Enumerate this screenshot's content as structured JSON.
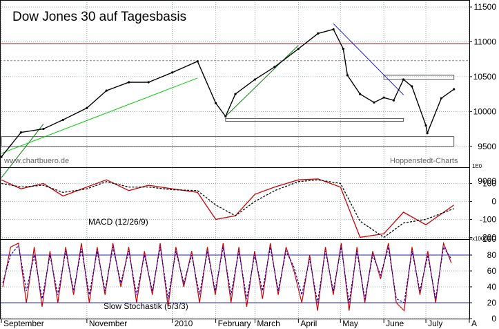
{
  "chart_data": [
    {
      "type": "line",
      "panel": "price",
      "title": "Dow Jones 30 auf Tagesbasis",
      "watermark_left": "www.chartbuero.de",
      "watermark_right": "Hoppenstedt-Charts",
      "ylim": [
        9200,
        11600
      ],
      "yticks": [
        {
          "value": 11500,
          "label": "11500"
        },
        {
          "value": 11000,
          "label": "11000"
        },
        {
          "value": 10500,
          "label": "10500"
        },
        {
          "value": 10000,
          "label": "10000"
        },
        {
          "value": 9500,
          "label": "9500"
        },
        {
          "value": 9000,
          "label": "9000"
        }
      ],
      "x_dates": [
        "2009-09-01",
        "2009-09-15",
        "2009-10-01",
        "2009-10-15",
        "2009-11-01",
        "2009-11-15",
        "2009-12-01",
        "2009-12-15",
        "2010-01-01",
        "2010-01-19",
        "2010-02-01",
        "2010-02-08",
        "2010-02-15",
        "2010-03-01",
        "2010-03-15",
        "2010-04-01",
        "2010-04-15",
        "2010-04-26",
        "2010-05-03",
        "2010-05-06",
        "2010-05-15",
        "2010-05-25",
        "2010-06-01",
        "2010-06-08",
        "2010-06-15",
        "2010-06-21",
        "2010-07-01",
        "2010-07-02",
        "2010-07-12",
        "2010-07-21"
      ],
      "series": [
        {
          "name": "",
          "color": "#000000",
          "values": [
            9350,
            9700,
            9750,
            9880,
            10050,
            10300,
            10420,
            10420,
            10560,
            10720,
            10120,
            9930,
            10250,
            10460,
            10640,
            10900,
            11120,
            11180,
            10900,
            10520,
            10250,
            10130,
            10200,
            10160,
            10460,
            10360,
            9800,
            9690,
            10190,
            10320
          ]
        }
      ],
      "horizontal_lines": [
        {
          "value": 10970,
          "color": "#cc0000"
        },
        {
          "value": 10730,
          "color": "#888888",
          "dashed": true
        }
      ],
      "zones": [
        {
          "x0": "2010-02-08",
          "x1": "2010-06-15",
          "y0": 9860,
          "y1": 9900
        },
        {
          "x0": "2009-09-01",
          "x1": "2010-07-21",
          "y0": 9500,
          "y1": 9640
        },
        {
          "x0": "2010-06-01",
          "x1": "2010-07-21",
          "y0": 10460,
          "y1": 10520
        }
      ],
      "trendlines": [
        {
          "color": "#008000",
          "from": [
            "2009-09-01",
            9050
          ],
          "to": [
            "2009-10-01",
            9820
          ]
        },
        {
          "color": "#00cc00",
          "from": [
            "2009-09-01",
            9400
          ],
          "to": [
            "2010-01-19",
            10480
          ]
        },
        {
          "color": "#008000",
          "from": [
            "2010-02-08",
            9930
          ],
          "to": [
            "2010-04-01",
            10950
          ]
        },
        {
          "color": "#2222cc",
          "from": [
            "2010-04-26",
            11260
          ],
          "to": [
            "2010-06-15",
            10240
          ]
        }
      ]
    },
    {
      "type": "line",
      "panel": "macd",
      "label": "MACD (12/26/9)",
      "scale_label": "1E0",
      "ylim": [
        -210,
        190
      ],
      "yticks": [
        {
          "value": 100,
          "label": "100"
        },
        {
          "value": 0,
          "label": "0"
        },
        {
          "value": -100,
          "label": "-100"
        },
        {
          "value": -200,
          "label": "-200"
        }
      ],
      "x_dates": [
        "2009-09-01",
        "2009-09-15",
        "2009-10-01",
        "2009-10-15",
        "2009-11-01",
        "2009-11-15",
        "2009-12-01",
        "2009-12-15",
        "2010-01-01",
        "2010-01-19",
        "2010-02-01",
        "2010-02-15",
        "2010-03-01",
        "2010-03-15",
        "2010-04-01",
        "2010-04-15",
        "2010-05-01",
        "2010-05-15",
        "2010-06-01",
        "2010-06-15",
        "2010-07-01",
        "2010-07-21"
      ],
      "series": [
        {
          "name": "",
          "color": "#cc0000",
          "values": [
            120,
            70,
            100,
            30,
            80,
            120,
            60,
            90,
            70,
            50,
            -100,
            -80,
            40,
            80,
            120,
            125,
            80,
            -200,
            -180,
            -60,
            -130,
            -20
          ]
        },
        {
          "name": "",
          "color": "#000000",
          "dashed": true,
          "values": [
            100,
            80,
            90,
            50,
            70,
            110,
            80,
            80,
            65,
            60,
            -20,
            -80,
            0,
            60,
            110,
            120,
            100,
            -110,
            -200,
            -120,
            -100,
            -40
          ]
        }
      ]
    },
    {
      "type": "line",
      "panel": "stochastic",
      "label": "Slow Stochastik (5/3/3)",
      "scale_label": "x10000",
      "ylim": [
        0,
        100
      ],
      "yticks": [
        {
          "value": 100,
          "label": "100"
        },
        {
          "value": 80,
          "label": "80"
        },
        {
          "value": 60,
          "label": "60"
        },
        {
          "value": 40,
          "label": "40"
        },
        {
          "value": 20,
          "label": "20"
        },
        {
          "value": 0,
          "label": "0"
        }
      ],
      "hlines": [
        80,
        20
      ],
      "series": [
        {
          "name": "",
          "color": "#cc0000",
          "values": [
            40,
            90,
            95,
            20,
            90,
            15,
            85,
            20,
            90,
            30,
            95,
            20,
            90,
            30,
            95,
            40,
            90,
            20,
            85,
            30,
            95,
            15,
            90,
            40,
            85,
            20,
            90,
            30,
            95,
            20,
            90,
            15,
            85,
            25,
            95,
            30,
            90,
            60,
            20,
            80,
            10,
            90,
            30,
            95,
            10,
            90,
            20,
            85,
            50,
            95,
            20,
            10,
            90,
            30,
            85,
            20,
            95,
            70
          ]
        },
        {
          "name": "",
          "color": "#0000cc",
          "dashed": true,
          "values": [
            45,
            80,
            92,
            35,
            80,
            25,
            80,
            30,
            85,
            35,
            88,
            30,
            85,
            35,
            90,
            45,
            85,
            30,
            80,
            35,
            90,
            25,
            85,
            45,
            80,
            30,
            85,
            35,
            90,
            30,
            85,
            25,
            80,
            35,
            90,
            35,
            85,
            65,
            30,
            75,
            20,
            85,
            35,
            90,
            20,
            85,
            25,
            80,
            55,
            90,
            25,
            20,
            85,
            35,
            80,
            25,
            90,
            75
          ]
        }
      ]
    }
  ],
  "x_axis": {
    "labels": [
      {
        "date": "2009-09-01",
        "label": "September"
      },
      {
        "date": "2009-11-01",
        "label": "November"
      },
      {
        "date": "2010-01-01",
        "label": "2010"
      },
      {
        "date": "2010-02-01",
        "label": "February"
      },
      {
        "date": "2010-03-01",
        "label": "March"
      },
      {
        "date": "2010-04-01",
        "label": "April"
      },
      {
        "date": "2010-05-01",
        "label": "May"
      },
      {
        "date": "2010-06-01",
        "label": "June"
      },
      {
        "date": "2010-07-01",
        "label": "July"
      },
      {
        "date": "2010-08-01",
        "label": "A"
      }
    ],
    "start": "2009-08-31",
    "end": "2010-08-01"
  }
}
